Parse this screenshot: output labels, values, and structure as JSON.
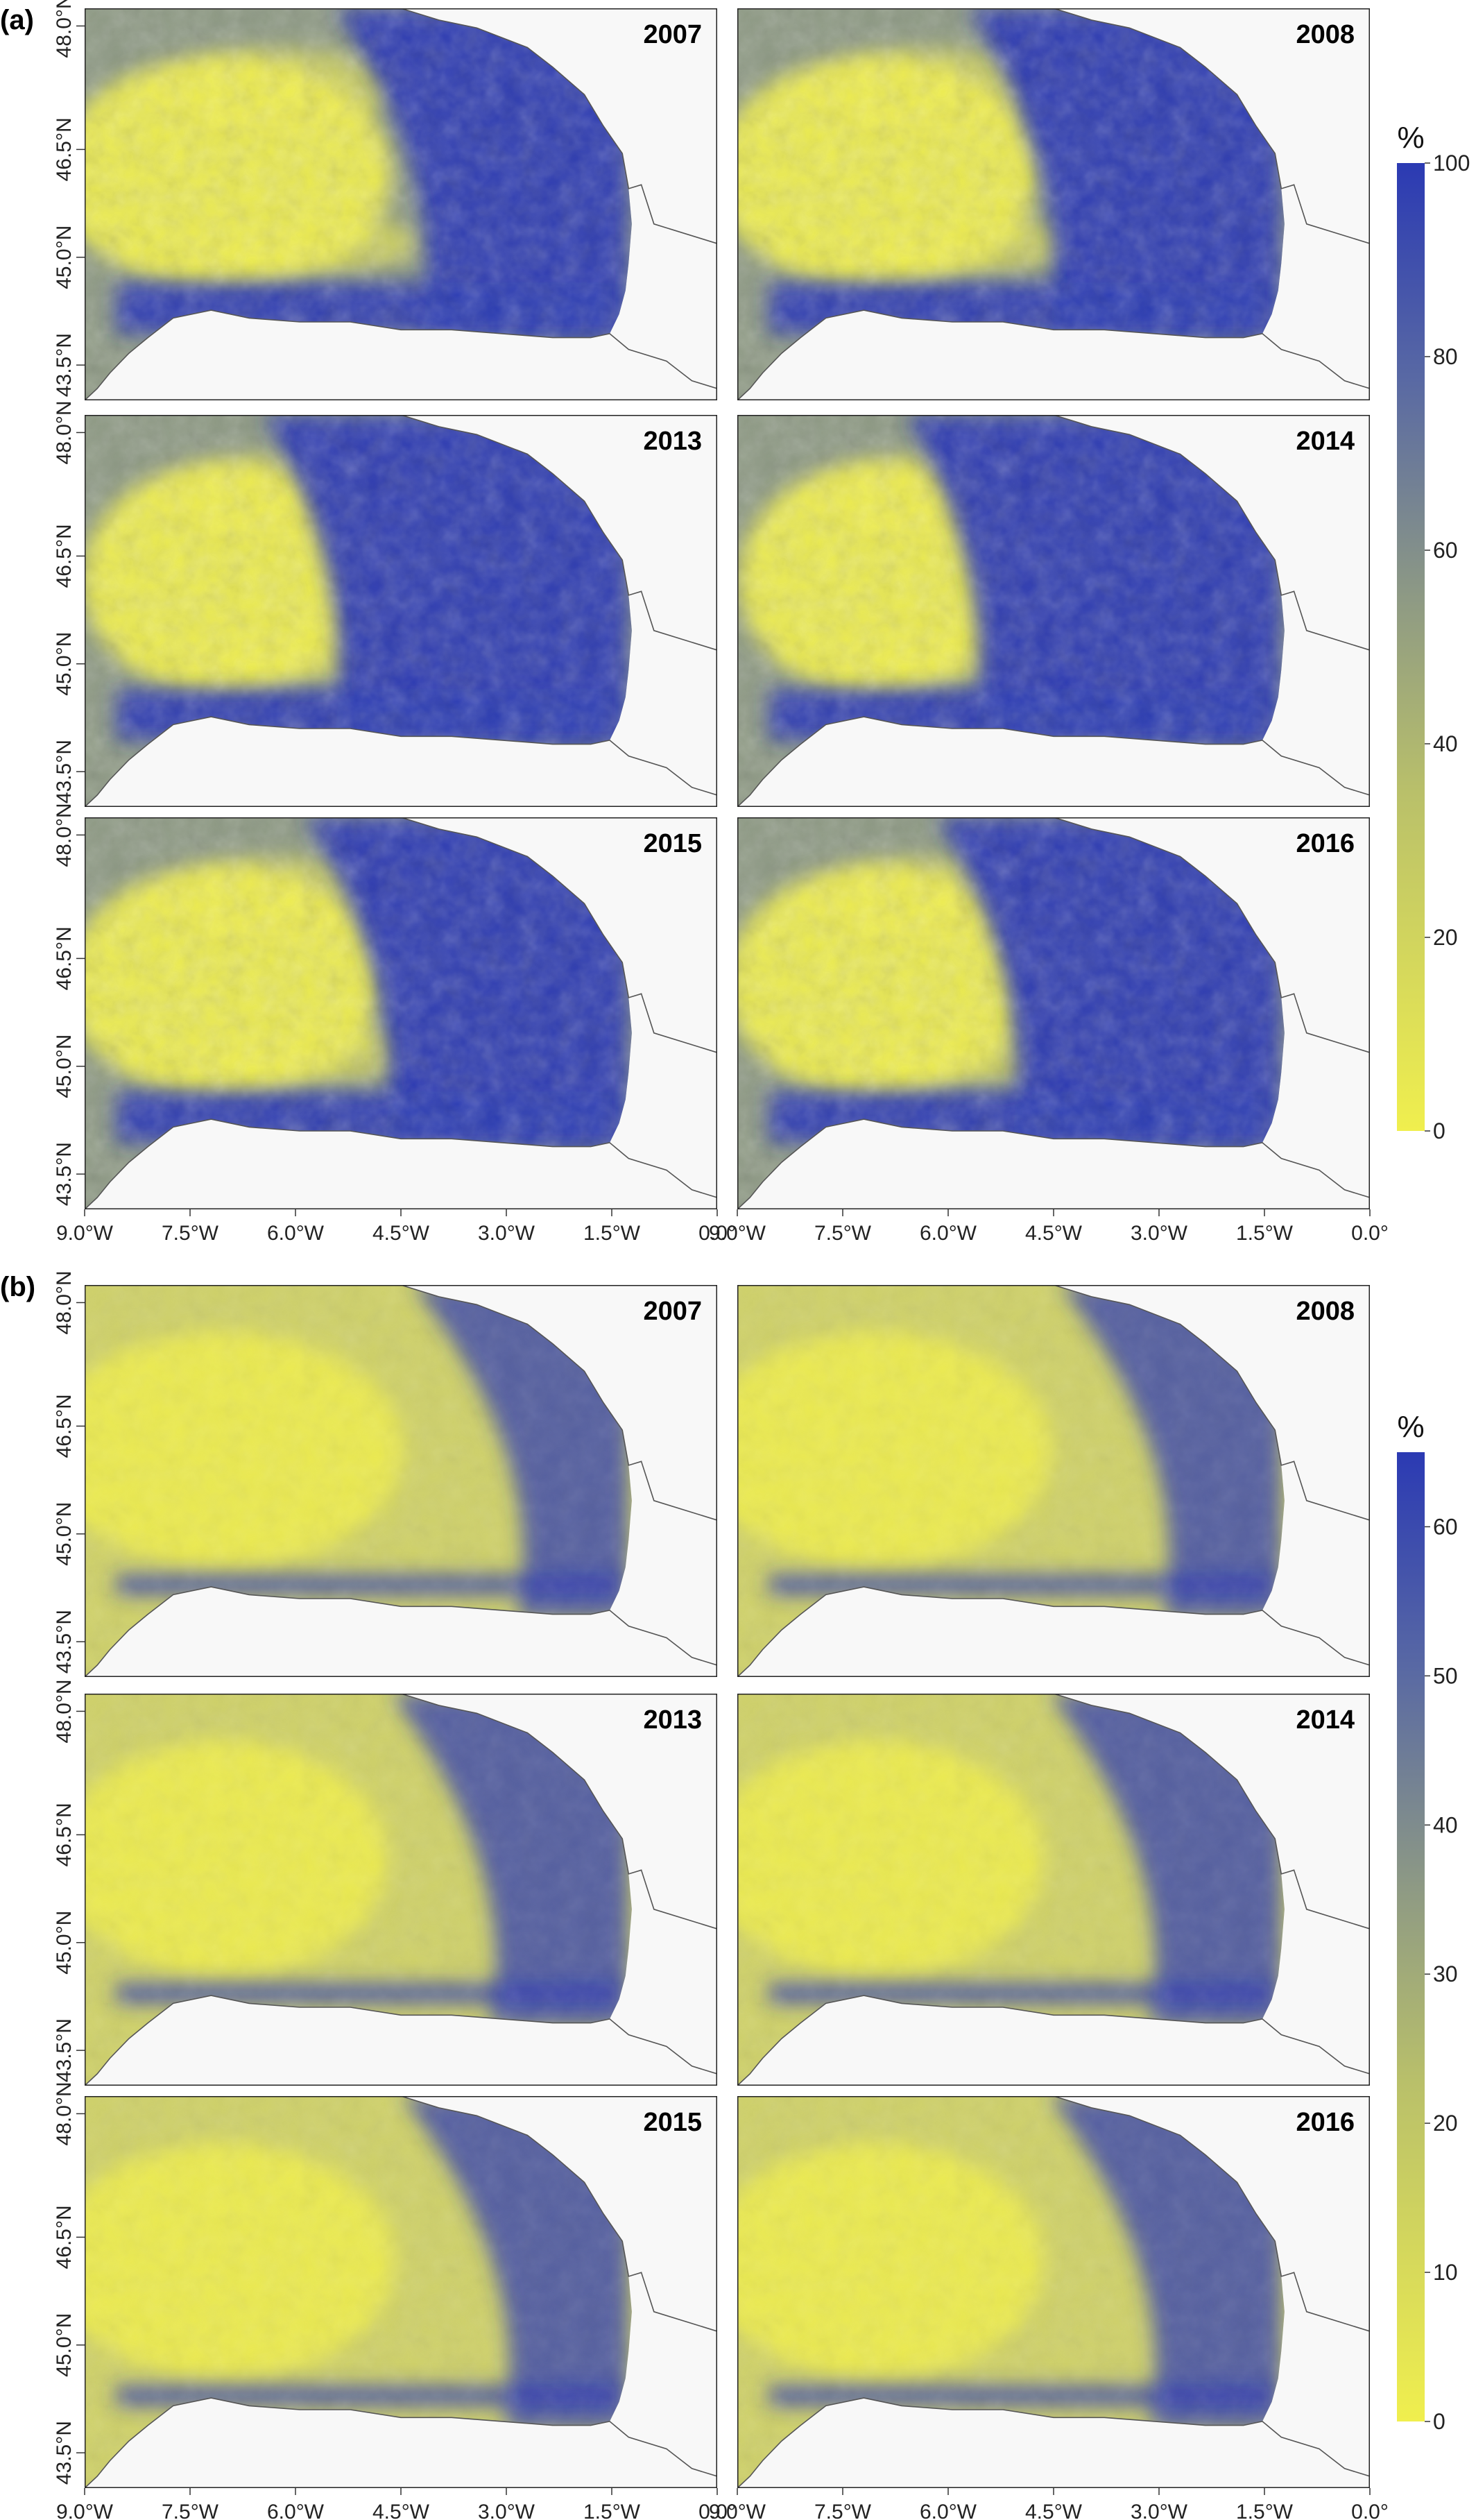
{
  "figure": {
    "panels": [
      {
        "label": "(a)",
        "maps": [
          {
            "year": "2007",
            "blue_extent": 0.45
          },
          {
            "year": "2008",
            "blue_extent": 0.55
          },
          {
            "year": "2013",
            "blue_extent": 0.8
          },
          {
            "year": "2014",
            "blue_extent": 0.85
          },
          {
            "year": "2015",
            "blue_extent": 0.6
          },
          {
            "year": "2016",
            "blue_extent": 0.7
          }
        ],
        "colorbar": {
          "title": "%",
          "min": 0,
          "max": 100,
          "ticks": [
            "0",
            "20",
            "40",
            "60",
            "80",
            "100"
          ],
          "tick_values": [
            0,
            20,
            40,
            60,
            80,
            100
          ]
        }
      },
      {
        "label": "(b)",
        "maps": [
          {
            "year": "2007",
            "blue_extent": 0.3
          },
          {
            "year": "2008",
            "blue_extent": 0.35
          },
          {
            "year": "2013",
            "blue_extent": 0.5
          },
          {
            "year": "2014",
            "blue_extent": 0.45
          },
          {
            "year": "2015",
            "blue_extent": 0.4
          },
          {
            "year": "2016",
            "blue_extent": 0.45
          }
        ],
        "colorbar": {
          "title": "%",
          "min": 0,
          "max": 65,
          "ticks": [
            "0",
            "10",
            "20",
            "30",
            "40",
            "50",
            "60"
          ],
          "tick_values": [
            0,
            10,
            20,
            30,
            40,
            50,
            60
          ]
        }
      }
    ],
    "x_ticks": [
      "9.0°W",
      "7.5°W",
      "6.0°W",
      "4.5°W",
      "3.0°W",
      "1.5°W",
      "0.0°"
    ],
    "y_ticks": [
      "48.0°N",
      "46.5°N",
      "45.0°N",
      "43.5°N"
    ],
    "colors": {
      "low": "#f0ef4e",
      "mid": "#8e9a84",
      "high": "#2b3ab3",
      "land": "#f8f8f8",
      "coast": "#555555"
    }
  }
}
